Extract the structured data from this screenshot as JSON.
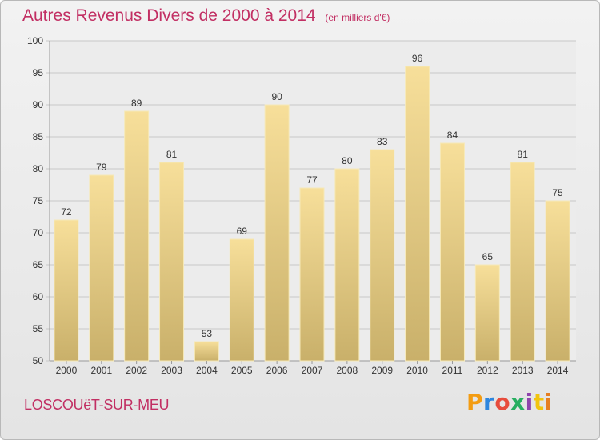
{
  "header": {
    "title": "Autres Revenus Divers de 2000 à 2014",
    "subtitle": "(en milliers d'€)"
  },
  "footer": {
    "commune": "LOSCOUëT-SUR-MEU",
    "brand": "Proxiti",
    "brand_colors": [
      "#f39c12",
      "#2e86de",
      "#e74c3c",
      "#27ae60",
      "#8e44ad",
      "#f1c40f",
      "#e67e22"
    ]
  },
  "colors": {
    "title": "#c22f63",
    "bar_light": "#f7df9a",
    "bar_dark": "#c9b06a",
    "grid": "#c8c8c8",
    "axis_text": "#333333"
  },
  "chart_data": {
    "type": "bar",
    "categories": [
      "2000",
      "2001",
      "2002",
      "2003",
      "2004",
      "2005",
      "2006",
      "2007",
      "2008",
      "2009",
      "2010",
      "2011",
      "2012",
      "2013",
      "2014"
    ],
    "values": [
      72,
      79,
      89,
      81,
      53,
      69,
      90,
      77,
      80,
      83,
      96,
      84,
      65,
      81,
      75
    ],
    "ylim": [
      50,
      100
    ],
    "yticks": [
      50,
      55,
      60,
      65,
      70,
      75,
      80,
      85,
      90,
      95,
      100
    ],
    "grid": true,
    "data_labels": true
  }
}
